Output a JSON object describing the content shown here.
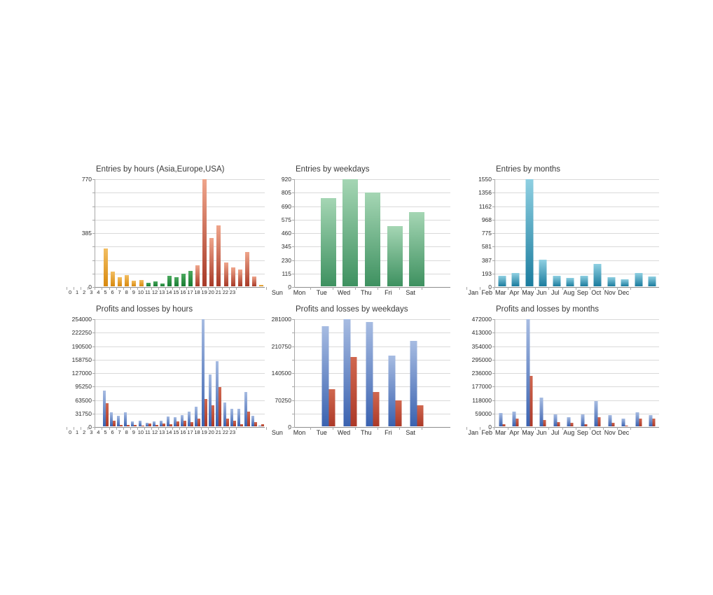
{
  "palette": {
    "asia": [
      "#F2BE62",
      "#D8890E"
    ],
    "europe": [
      "#4CA95F",
      "#177C31"
    ],
    "usa": [
      "#EFA58B",
      "#A83A28"
    ],
    "entries_green": [
      "#A5D6B4",
      "#3E9160"
    ],
    "entries_teal": [
      "#8FD0E2",
      "#1B7C9E"
    ],
    "profit": [
      "#A7BCE2",
      "#3A62B0"
    ],
    "loss": [
      "#D0674F",
      "#AC3928"
    ]
  },
  "chart_data": [
    {
      "id": "entries-by-hours",
      "type": "bar",
      "title": "Entries by hours (Asia,Europe,USA)",
      "ylim": [
        0,
        770
      ],
      "grid": true,
      "legend": "none",
      "ytick_labels": [
        "770",
        "",
        "",
        "",
        "385",
        "",
        "",
        "",
        "0"
      ],
      "categories": [
        "0",
        "1",
        "2",
        "3",
        "4",
        "5",
        "6",
        "7",
        "8",
        "9",
        "10",
        "11",
        "12",
        "13",
        "14",
        "15",
        "16",
        "17",
        "18",
        "19",
        "20",
        "21",
        "22",
        "23"
      ],
      "series": [
        {
          "name": "entries",
          "values": [
            0,
            273,
            105,
            64,
            80,
            42,
            45,
            25,
            37,
            22,
            74,
            67,
            89,
            109,
            149,
            770,
            348,
            440,
            172,
            134,
            121,
            248,
            72,
            8
          ],
          "color_keys": [
            "asia",
            "asia",
            "asia",
            "asia",
            "asia",
            "asia",
            "asia",
            "europe",
            "europe",
            "europe",
            "europe",
            "europe",
            "europe",
            "europe",
            "usa",
            "usa",
            "usa",
            "usa",
            "usa",
            "usa",
            "usa",
            "usa",
            "usa",
            "asia"
          ]
        }
      ]
    },
    {
      "id": "entries-by-weekdays",
      "type": "bar",
      "title": "Entries by weekdays",
      "ylim": [
        0,
        920
      ],
      "grid": true,
      "legend": "none",
      "ytick_labels": [
        "920",
        "805",
        "690",
        "575",
        "460",
        "345",
        "230",
        "115",
        "0"
      ],
      "categories": [
        "Sun",
        "Mon",
        "Tue",
        "Wed",
        "Thu",
        "Fri",
        "Sat"
      ],
      "series": [
        {
          "name": "entries",
          "color_key": "entries_green",
          "values": [
            0,
            755,
            920,
            805,
            515,
            640,
            0
          ]
        }
      ]
    },
    {
      "id": "entries-by-months",
      "type": "bar",
      "title": "Entries by months",
      "ylim": [
        0,
        1550
      ],
      "grid": true,
      "legend": "none",
      "ytick_labels": [
        "1550",
        "1356",
        "1162",
        "968",
        "775",
        "581",
        "387",
        "193",
        "0"
      ],
      "categories": [
        "Jan",
        "Feb",
        "Mar",
        "Apr",
        "May",
        "Jun",
        "Jul",
        "Aug",
        "Sep",
        "Oct",
        "Nov",
        "Dec"
      ],
      "series": [
        {
          "name": "entries",
          "color_key": "entries_teal",
          "values": [
            155,
            190,
            1550,
            385,
            150,
            120,
            148,
            325,
            135,
            100,
            190,
            137
          ]
        }
      ]
    },
    {
      "id": "profits-losses-by-hours",
      "type": "bar",
      "title": "Profits and losses by hours",
      "ylim": [
        0,
        254000
      ],
      "grid": true,
      "legend": "none",
      "ytick_labels": [
        "254000",
        "222250",
        "190500",
        "158750",
        "127000",
        "95250",
        "63500",
        "31750",
        "0"
      ],
      "categories": [
        "0",
        "1",
        "2",
        "3",
        "4",
        "5",
        "6",
        "7",
        "8",
        "9",
        "10",
        "11",
        "12",
        "13",
        "14",
        "15",
        "16",
        "17",
        "18",
        "19",
        "20",
        "21",
        "22",
        "23"
      ],
      "series": [
        {
          "name": "profit",
          "color_key": "profit",
          "values": [
            0,
            85000,
            34000,
            25000,
            34000,
            11000,
            14000,
            8500,
            11500,
            13000,
            23000,
            21000,
            26000,
            35000,
            46000,
            254000,
            123000,
            155000,
            57000,
            41000,
            41000,
            81000,
            25000,
            2000
          ]
        },
        {
          "name": "loss",
          "color_key": "loss",
          "values": [
            0,
            55000,
            13000,
            4000,
            4000,
            3000,
            2500,
            6000,
            3500,
            6500,
            5500,
            11000,
            14000,
            9500,
            19000,
            65000,
            50000,
            93000,
            18000,
            13000,
            5000,
            35000,
            10500,
            5500
          ]
        }
      ]
    },
    {
      "id": "profits-losses-by-weekdays",
      "type": "bar",
      "title": "Profits and losses by weekdays",
      "ylim": [
        0,
        281000
      ],
      "grid": true,
      "legend": "none",
      "ytick_labels": [
        "281000",
        "",
        "210750",
        "",
        "140500",
        "",
        "70250",
        "",
        "0"
      ],
      "categories": [
        "Sun",
        "Mon",
        "Tue",
        "Wed",
        "Thu",
        "Fri",
        "Sat"
      ],
      "series": [
        {
          "name": "profit",
          "color_key": "profit",
          "values": [
            0,
            262000,
            281000,
            273000,
            185000,
            225000,
            0
          ]
        },
        {
          "name": "loss",
          "color_key": "loss",
          "values": [
            0,
            98000,
            182000,
            90000,
            68000,
            55000,
            0
          ]
        }
      ]
    },
    {
      "id": "profits-losses-by-months",
      "type": "bar",
      "title": "Profits and losses by months",
      "ylim": [
        0,
        472000
      ],
      "grid": true,
      "legend": "none",
      "ytick_labels": [
        "472000",
        "413000",
        "354000",
        "295000",
        "236000",
        "177000",
        "118000",
        "59000",
        "0"
      ],
      "categories": [
        "Jan",
        "Feb",
        "Mar",
        "Apr",
        "May",
        "Jun",
        "Jul",
        "Aug",
        "Sep",
        "Oct",
        "Nov",
        "Dec"
      ],
      "series": [
        {
          "name": "profit",
          "color_key": "profit",
          "values": [
            58000,
            64000,
            472000,
            128000,
            51000,
            39000,
            53000,
            110000,
            49000,
            35000,
            62000,
            48000
          ]
        },
        {
          "name": "loss",
          "color_key": "loss",
          "values": [
            9000,
            34000,
            223000,
            27000,
            19000,
            14500,
            10000,
            39000,
            15500,
            3000,
            35000,
            33000
          ]
        }
      ]
    }
  ]
}
